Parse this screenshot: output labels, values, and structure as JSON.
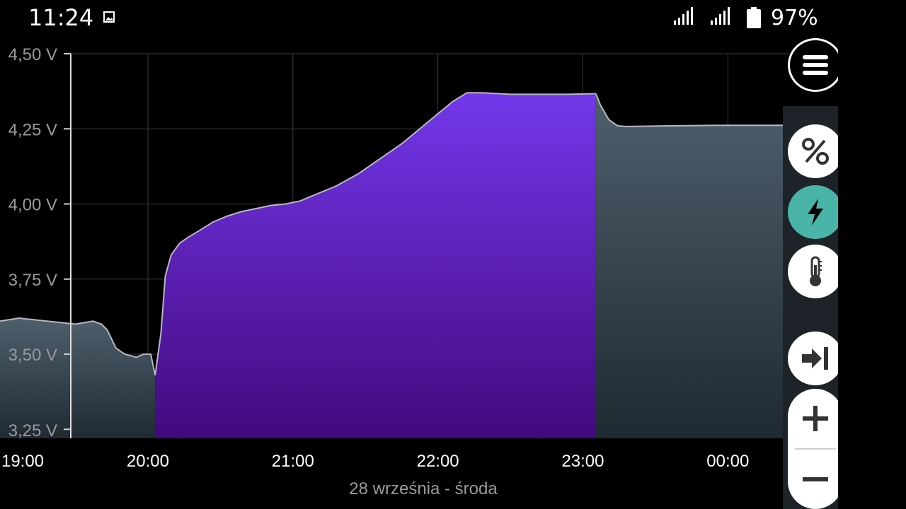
{
  "status_bar": {
    "time": "11:24",
    "battery_percent": "97%",
    "icons": [
      "image-notification-icon",
      "signal-icon",
      "signal-icon",
      "battery-icon"
    ]
  },
  "chart_data": {
    "type": "area",
    "xlabel": "28 września - środa",
    "ylabel": "",
    "x_ticks": [
      "19:00",
      "20:00",
      "21:00",
      "22:00",
      "23:00",
      "00:00"
    ],
    "y_ticks": [
      "3,25 V",
      "3,50 V",
      "3,75 V",
      "4,00 V",
      "4,25 V",
      "4,50 V"
    ],
    "y_tick_values": [
      3.25,
      3.5,
      3.75,
      4.0,
      4.25,
      4.5
    ],
    "ylim": [
      3.22,
      4.5
    ],
    "xlim_hours": [
      18.98,
      24.76
    ],
    "grid": true,
    "series": [
      {
        "role": "discharging",
        "color": "#4a5a66",
        "x": [
          18.98,
          19.11,
          19.5,
          19.62,
          19.68,
          19.72,
          19.78,
          19.84,
          19.92,
          19.97,
          20.02,
          20.05
        ],
        "y": [
          3.61,
          3.62,
          3.6,
          3.61,
          3.6,
          3.58,
          3.52,
          3.5,
          3.49,
          3.5,
          3.5,
          3.43
        ]
      },
      {
        "role": "charging",
        "color": "#7338ea",
        "x": [
          20.05,
          20.09,
          20.12,
          20.16,
          20.22,
          20.28,
          20.35,
          20.45,
          20.55,
          20.65,
          20.75,
          20.85,
          20.95,
          21.05,
          21.15,
          21.3,
          21.45,
          21.6,
          21.75,
          21.9,
          22.0,
          22.1,
          22.2,
          22.3,
          22.5,
          22.7,
          22.9,
          23.09
        ],
        "y": [
          3.43,
          3.57,
          3.76,
          3.83,
          3.87,
          3.89,
          3.91,
          3.94,
          3.96,
          3.975,
          3.985,
          3.995,
          4.0,
          4.01,
          4.03,
          4.06,
          4.1,
          4.15,
          4.2,
          4.26,
          4.3,
          4.34,
          4.37,
          4.37,
          4.365,
          4.365,
          4.365,
          4.367
        ]
      },
      {
        "role": "discharging",
        "color": "#4a5a66",
        "x": [
          23.09,
          23.12,
          23.18,
          23.24,
          23.3,
          23.6,
          24.0,
          24.76
        ],
        "y": [
          4.367,
          4.33,
          4.28,
          4.26,
          4.258,
          4.26,
          4.262,
          4.262
        ]
      }
    ]
  },
  "toolbar": {
    "buttons": [
      "menu-icon",
      "percent-icon",
      "voltage-icon",
      "temperature-icon",
      "scroll-to-end-icon",
      "zoom-in-icon",
      "zoom-out-icon"
    ],
    "active": "voltage-icon",
    "active_color": "#4bb4a8"
  }
}
